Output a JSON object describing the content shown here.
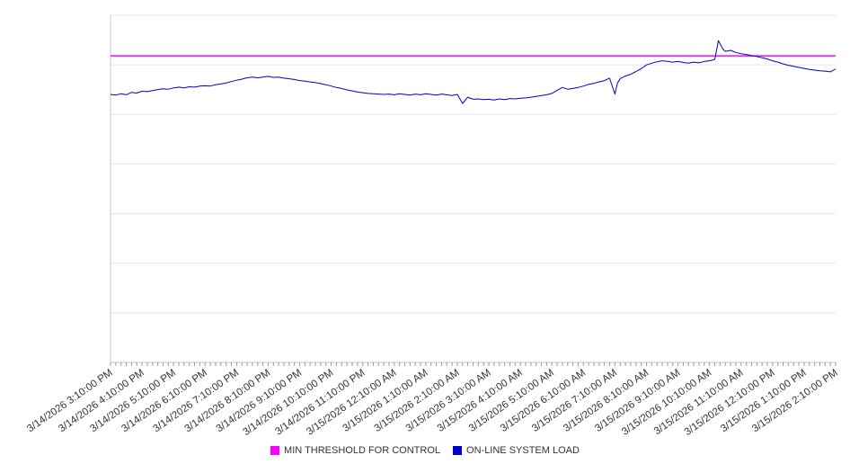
{
  "chart_data": {
    "type": "line",
    "title": "",
    "xlabel": "",
    "ylabel": "",
    "grid": "horizontal",
    "grid_divisions": 7,
    "ylim": [
      0,
      100
    ],
    "y_tick_labels_shown": false,
    "legend_position": "bottom-center",
    "x_minor_ticks_per_interval": 6,
    "x_tick_labels": [
      "3/14/2026 3:10:00 PM",
      "3/14/2026 4:10:00 PM",
      "3/14/2026 5:10:00 PM",
      "3/14/2026 6:10:00 PM",
      "3/14/2026 7:10:00 PM",
      "3/14/2026 8:10:00 PM",
      "3/14/2026 9:10:00 PM",
      "3/14/2026 10:10:00 PM",
      "3/14/2026 11:10:00 PM",
      "3/15/2026 12:10:00 AM",
      "3/15/2026 1:10:00 AM",
      "3/15/2026 2:10:00 AM",
      "3/15/2026 3:10:00 AM",
      "3/15/2026 4:10:00 AM",
      "3/15/2026 5:10:00 AM",
      "3/15/2026 6:10:00 AM",
      "3/15/2026 7:10:00 AM",
      "3/15/2026 8:10:00 AM",
      "3/15/2026 9:10:00 AM",
      "3/15/2026 10:10:00 AM",
      "3/15/2026 11:10:00 AM",
      "3/15/2026 12:10:00 PM",
      "3/15/2026 1:10:00 PM",
      "3/15/2026 2:10:00 PM"
    ],
    "series": [
      {
        "name": "MIN THRESHOLD FOR CONTROL",
        "type": "threshold",
        "color": "#ff00ff",
        "value": 88.3
      },
      {
        "name": "ON-LINE SYSTEM LOAD",
        "type": "line",
        "color": "#0000cc",
        "points": [
          [
            0,
            77.2
          ],
          [
            0.17,
            77.0
          ],
          [
            0.33,
            77.4
          ],
          [
            0.5,
            77.1
          ],
          [
            0.67,
            77.8
          ],
          [
            0.83,
            77.6
          ],
          [
            1,
            78.1
          ],
          [
            1.17,
            78.0
          ],
          [
            1.33,
            78.3
          ],
          [
            1.5,
            78.6
          ],
          [
            1.67,
            78.8
          ],
          [
            1.83,
            78.7
          ],
          [
            2,
            79.1
          ],
          [
            2.17,
            79.3
          ],
          [
            2.33,
            79.1
          ],
          [
            2.5,
            79.4
          ],
          [
            2.67,
            79.3
          ],
          [
            2.83,
            79.6
          ],
          [
            3,
            79.7
          ],
          [
            3.17,
            79.6
          ],
          [
            3.33,
            80.0
          ],
          [
            3.5,
            80.2
          ],
          [
            3.67,
            80.5
          ],
          [
            3.83,
            80.9
          ],
          [
            4,
            81.3
          ],
          [
            4.17,
            81.6
          ],
          [
            4.33,
            82.0
          ],
          [
            4.5,
            82.2
          ],
          [
            4.67,
            82.0
          ],
          [
            4.83,
            82.2
          ],
          [
            5,
            82.4
          ],
          [
            5.17,
            82.1
          ],
          [
            5.33,
            82.2
          ],
          [
            5.5,
            81.9
          ],
          [
            5.67,
            81.7
          ],
          [
            5.83,
            81.5
          ],
          [
            6,
            81.2
          ],
          [
            6.17,
            81.0
          ],
          [
            6.33,
            80.8
          ],
          [
            6.5,
            80.6
          ],
          [
            6.67,
            80.3
          ],
          [
            6.83,
            80.0
          ],
          [
            7,
            79.6
          ],
          [
            7.17,
            79.2
          ],
          [
            7.33,
            78.9
          ],
          [
            7.5,
            78.5
          ],
          [
            7.67,
            78.2
          ],
          [
            7.83,
            77.9
          ],
          [
            8,
            77.7
          ],
          [
            8.17,
            77.5
          ],
          [
            8.33,
            77.4
          ],
          [
            8.5,
            77.3
          ],
          [
            8.67,
            77.2
          ],
          [
            8.83,
            77.3
          ],
          [
            9,
            77.1
          ],
          [
            9.17,
            77.4
          ],
          [
            9.33,
            77.2
          ],
          [
            9.5,
            77.0
          ],
          [
            9.67,
            77.3
          ],
          [
            9.83,
            77.1
          ],
          [
            10,
            77.4
          ],
          [
            10.17,
            77.2
          ],
          [
            10.33,
            77.0
          ],
          [
            10.5,
            77.3
          ],
          [
            10.67,
            77.1
          ],
          [
            10.83,
            76.9
          ],
          [
            11,
            77.2
          ],
          [
            11.17,
            74.6
          ],
          [
            11.33,
            76.4
          ],
          [
            11.5,
            75.8
          ],
          [
            11.67,
            75.9
          ],
          [
            11.83,
            75.7
          ],
          [
            12,
            75.8
          ],
          [
            12.17,
            75.6
          ],
          [
            12.33,
            75.9
          ],
          [
            12.5,
            75.7
          ],
          [
            12.67,
            76.0
          ],
          [
            12.83,
            75.9
          ],
          [
            13,
            76.1
          ],
          [
            13.17,
            76.2
          ],
          [
            13.33,
            76.4
          ],
          [
            13.5,
            76.6
          ],
          [
            13.67,
            76.9
          ],
          [
            13.83,
            77.1
          ],
          [
            14,
            77.5
          ],
          [
            14.17,
            78.4
          ],
          [
            14.33,
            79.2
          ],
          [
            14.5,
            78.7
          ],
          [
            14.67,
            78.9
          ],
          [
            14.83,
            79.2
          ],
          [
            15,
            79.6
          ],
          [
            15.17,
            80.1
          ],
          [
            15.33,
            80.4
          ],
          [
            15.5,
            80.8
          ],
          [
            15.67,
            81.2
          ],
          [
            15.83,
            81.9
          ],
          [
            16,
            77.3
          ],
          [
            16.08,
            80.5
          ],
          [
            16.17,
            81.8
          ],
          [
            16.33,
            82.5
          ],
          [
            16.5,
            83.0
          ],
          [
            16.67,
            83.8
          ],
          [
            16.83,
            84.6
          ],
          [
            17,
            85.7
          ],
          [
            17.17,
            86.2
          ],
          [
            17.33,
            86.6
          ],
          [
            17.5,
            86.9
          ],
          [
            17.67,
            86.7
          ],
          [
            17.83,
            86.5
          ],
          [
            18,
            86.7
          ],
          [
            18.17,
            86.4
          ],
          [
            18.33,
            86.2
          ],
          [
            18.5,
            86.5
          ],
          [
            18.67,
            86.3
          ],
          [
            18.83,
            86.7
          ],
          [
            19,
            86.9
          ],
          [
            19.17,
            87.3
          ],
          [
            19.28,
            92.7
          ],
          [
            19.42,
            90.3
          ],
          [
            19.5,
            89.6
          ],
          [
            19.67,
            89.9
          ],
          [
            19.83,
            89.3
          ],
          [
            20,
            88.9
          ],
          [
            20.17,
            88.7
          ],
          [
            20.33,
            88.4
          ],
          [
            20.5,
            88.1
          ],
          [
            20.67,
            87.8
          ],
          [
            20.83,
            87.4
          ],
          [
            21,
            86.9
          ],
          [
            21.17,
            86.5
          ],
          [
            21.33,
            86.0
          ],
          [
            21.5,
            85.6
          ],
          [
            21.67,
            85.3
          ],
          [
            21.83,
            85.0
          ],
          [
            22,
            84.7
          ],
          [
            22.17,
            84.4
          ],
          [
            22.33,
            84.2
          ],
          [
            22.5,
            84.0
          ],
          [
            22.67,
            83.9
          ],
          [
            22.83,
            83.7
          ],
          [
            23,
            84.5
          ]
        ]
      }
    ]
  }
}
